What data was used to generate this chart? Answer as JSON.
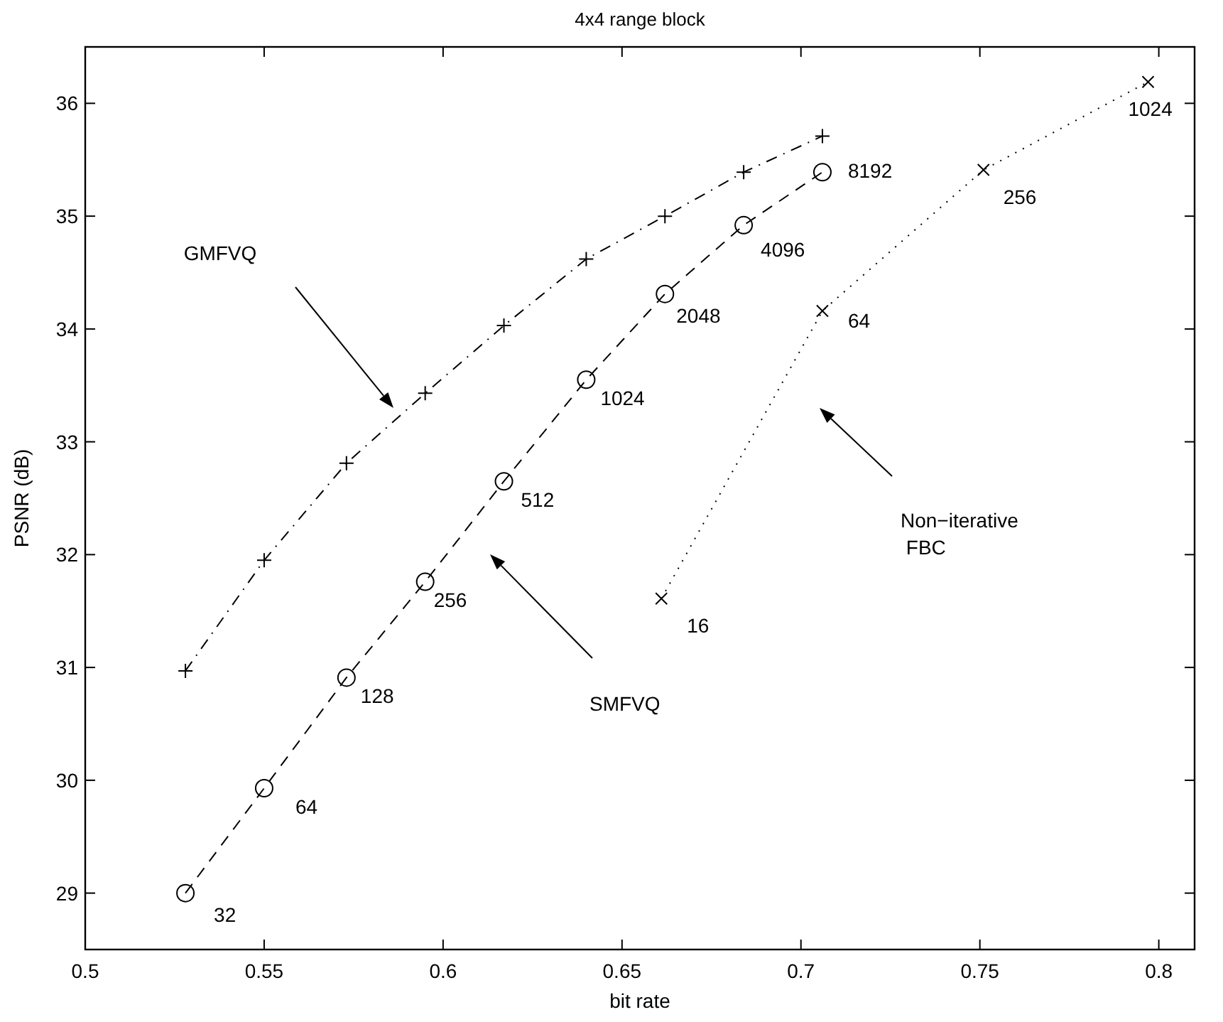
{
  "chart_data": {
    "type": "line",
    "title": "4x4 range block",
    "xlabel": "bit rate",
    "ylabel": "PSNR (dB)",
    "xlim": [
      0.5,
      0.81
    ],
    "ylim": [
      28.5,
      36.5
    ],
    "xticks": [
      0.5,
      0.55,
      0.6,
      0.65,
      0.7,
      0.75,
      0.8
    ],
    "yticks": [
      29,
      30,
      31,
      32,
      33,
      34,
      35,
      36
    ],
    "grid": false,
    "series": [
      {
        "color": "#000000",
        "marker": "plus",
        "line_style": "dashdot",
        "x": [
          0.528,
          0.55,
          0.573,
          0.595,
          0.617,
          0.64,
          0.662,
          0.684,
          0.706
        ],
        "values": [
          30.97,
          31.95,
          32.81,
          33.43,
          34.03,
          34.62,
          35.0,
          35.39,
          35.71
        ]
      },
      {
        "color": "#000000",
        "marker": "circle",
        "line_style": "dashed",
        "x": [
          0.528,
          0.55,
          0.573,
          0.595,
          0.617,
          0.64,
          0.662,
          0.684,
          0.706
        ],
        "values": [
          29.0,
          29.93,
          30.91,
          31.76,
          32.65,
          33.55,
          34.31,
          34.92,
          35.39
        ]
      },
      {
        "color": "#000000",
        "marker": "cross",
        "line_style": "dotted",
        "x": [
          0.661,
          0.706,
          0.751,
          0.797
        ],
        "values": [
          31.61,
          34.16,
          35.41,
          36.19
        ]
      }
    ],
    "annotations": [
      "GMFVQ",
      "SMFVQ",
      "Non−iterative\n FBC",
      {
        "text": "32",
        "x": 0.528,
        "y": 29.0
      },
      {
        "text": "64",
        "x": 0.55,
        "y": 29.93
      },
      {
        "text": "128",
        "x": 0.573,
        "y": 30.91
      },
      {
        "text": "256",
        "x": 0.595,
        "y": 31.76
      },
      {
        "text": "512",
        "x": 0.617,
        "y": 32.65
      },
      {
        "text": "1024",
        "x": 0.64,
        "y": 33.55
      },
      {
        "text": "2048",
        "x": 0.662,
        "y": 34.31
      },
      {
        "text": "4096",
        "x": 0.684,
        "y": 34.92
      },
      {
        "text": "8192",
        "x": 0.706,
        "y": 35.39
      },
      {
        "text": "16",
        "x": 0.661,
        "y": 31.61
      },
      {
        "text": "64",
        "x": 0.706,
        "y": 34.16
      },
      {
        "text": "256",
        "x": 0.751,
        "y": 35.41
      },
      {
        "text": "1024",
        "x": 0.797,
        "y": 36.19
      }
    ]
  }
}
